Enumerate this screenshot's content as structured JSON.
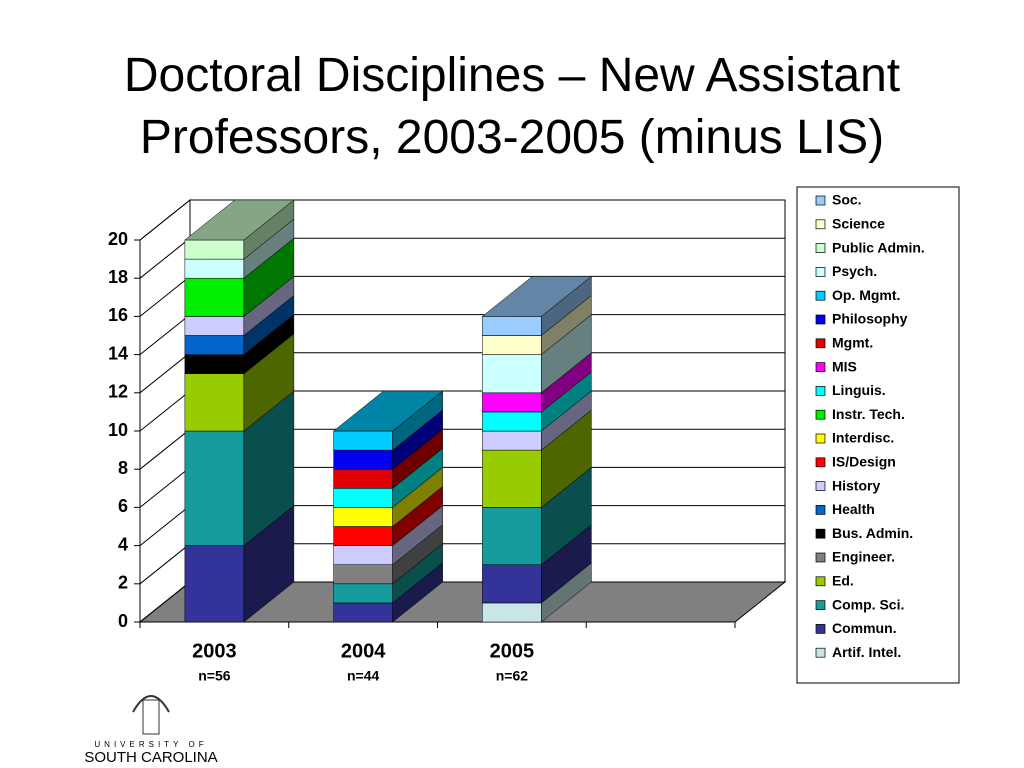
{
  "chart_data": {
    "type": "bar3d_stacked",
    "title": "Doctoral Disciplines – New Assistant Professors, 2003-2005 (minus LIS)",
    "categories": [
      "2003",
      "2004",
      "2005"
    ],
    "category_notes": [
      "n=56",
      "n=44",
      "n=62"
    ],
    "ylim": [
      0,
      20
    ],
    "yticks": [
      0,
      2,
      4,
      6,
      8,
      10,
      12,
      14,
      16,
      18,
      20
    ],
    "grid": true,
    "legend_position": "right",
    "series": [
      {
        "name": "Artif. Intel.",
        "color": "#c8e6e6",
        "values": [
          0,
          0,
          1
        ]
      },
      {
        "name": "Commun.",
        "color": "#333399",
        "values": [
          4,
          1,
          2
        ]
      },
      {
        "name": "Comp. Sci.",
        "color": "#169c9c",
        "values": [
          6,
          1,
          3
        ]
      },
      {
        "name": "Ed.",
        "color": "#99cc00",
        "values": [
          3,
          0,
          3
        ]
      },
      {
        "name": "Engineer.",
        "color": "#808080",
        "values": [
          0,
          1,
          0
        ]
      },
      {
        "name": "Bus. Admin.",
        "color": "#000000",
        "values": [
          1,
          0,
          0
        ]
      },
      {
        "name": "Health",
        "color": "#0066cc",
        "values": [
          1,
          0,
          0
        ]
      },
      {
        "name": "History",
        "color": "#ccccff",
        "values": [
          1,
          1,
          1
        ]
      },
      {
        "name": "IS/Design",
        "color": "#ff0000",
        "values": [
          0,
          1,
          0
        ]
      },
      {
        "name": "Interdisc.",
        "color": "#ffff00",
        "values": [
          0,
          1,
          0
        ]
      },
      {
        "name": "Instr. Tech.",
        "color": "#00ee00",
        "values": [
          2,
          0,
          0
        ]
      },
      {
        "name": "Linguis.",
        "color": "#00ffff",
        "values": [
          0,
          1,
          1
        ]
      },
      {
        "name": "MIS",
        "color": "#ff00ff",
        "values": [
          0,
          0,
          1
        ]
      },
      {
        "name": "Mgmt.",
        "color": "#e00000",
        "values": [
          0,
          1,
          0
        ]
      },
      {
        "name": "Philosophy",
        "color": "#0000ee",
        "values": [
          0,
          1,
          0
        ]
      },
      {
        "name": "Op. Mgmt.",
        "color": "#00ccff",
        "values": [
          0,
          1,
          0
        ]
      },
      {
        "name": "Psych.",
        "color": "#ccffff",
        "values": [
          1,
          0,
          2
        ]
      },
      {
        "name": "Public Admin.",
        "color": "#ccffcc",
        "values": [
          1,
          0,
          0
        ]
      },
      {
        "name": "Science",
        "color": "#ffffcc",
        "values": [
          0,
          0,
          1
        ]
      },
      {
        "name": "Soc.",
        "color": "#99ccff",
        "values": [
          0,
          0,
          1
        ]
      }
    ]
  },
  "logo": {
    "line1": "UNIVERSITY OF",
    "line2": "SOUTH CAROLINA"
  }
}
